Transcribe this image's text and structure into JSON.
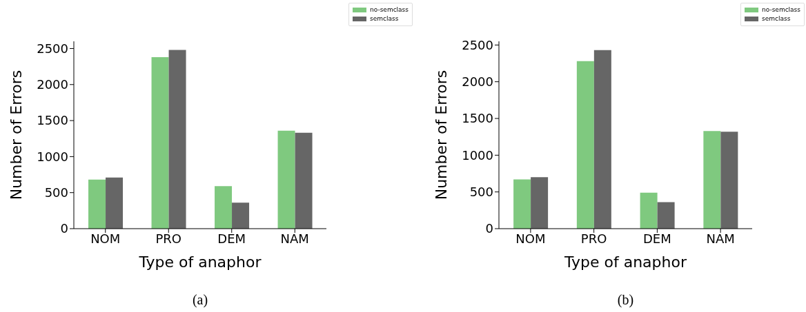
{
  "chart_data": [
    {
      "type": "bar",
      "categories": [
        "NOM",
        "PRO",
        "DEM",
        "NAM"
      ],
      "xlabel": "Type of anaphor",
      "ylabel": "Number of Errors",
      "series": [
        {
          "name": "no-semclass",
          "color": "#7fc97f",
          "values": [
            680,
            2380,
            590,
            1360
          ]
        },
        {
          "name": "semclass",
          "color": "#666666",
          "values": [
            710,
            2480,
            360,
            1330
          ]
        }
      ],
      "ylim": [
        0,
        2600
      ],
      "yticks": [
        0,
        500,
        1000,
        1500,
        2000,
        2500
      ],
      "grid": false,
      "legend": "top right",
      "annotations": [
        "(a)"
      ]
    },
    {
      "type": "bar",
      "categories": [
        "NOM",
        "PRO",
        "DEM",
        "NAM"
      ],
      "xlabel": "Type of anaphor",
      "ylabel": "Number of Errors",
      "series": [
        {
          "name": "no-semclass",
          "color": "#7fc97f",
          "values": [
            670,
            2280,
            490,
            1330
          ]
        },
        {
          "name": "semclass",
          "color": "#666666",
          "values": [
            700,
            2430,
            360,
            1320
          ]
        }
      ],
      "ylim": [
        0,
        2550
      ],
      "yticks": [
        0,
        500,
        1000,
        1500,
        2000,
        2500
      ],
      "grid": false,
      "legend": "top right",
      "annotations": [
        "(b)"
      ]
    }
  ]
}
